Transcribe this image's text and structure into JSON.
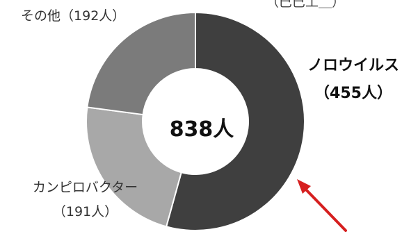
{
  "chart_data": {
    "type": "pie",
    "variant": "donut",
    "center_label": "838人",
    "slices": [
      {
        "name": "ノロウイルス",
        "value": 455,
        "value_label": "（455人）",
        "color": "#3f3f3f",
        "emphasis": true
      },
      {
        "name": "カンピロバクター",
        "value": 191,
        "value_label": "（191人）",
        "color": "#a8a8a8",
        "emphasis": false
      },
      {
        "name": "その他",
        "value": 192,
        "value_label": "（192人）",
        "color": "#7b7b7b",
        "emphasis": false
      }
    ],
    "top_cut_text": "（巳巳工＿）"
  },
  "colors": {
    "arrow": "#d61f1f",
    "separator": "#ffffff"
  }
}
